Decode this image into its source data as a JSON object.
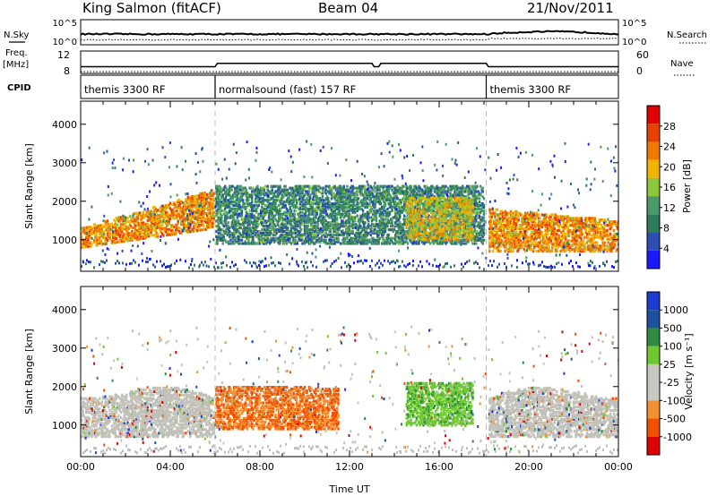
{
  "header": {
    "station": "King Salmon (fitACF)",
    "beam": "Beam 04",
    "date": "21/Nov/2011"
  },
  "side_labels": {
    "nsky": "N.Sky",
    "nsearch": "N.Search",
    "freq": "Freq.",
    "mhz": "[MHz]",
    "nave": "Nave",
    "cpid": "CPID"
  },
  "noise_panel": {
    "left_ticks": [
      "10^5",
      "10^0"
    ],
    "right_ticks": [
      "10^5",
      "10^0"
    ]
  },
  "freq_panel": {
    "left_ticks": [
      "12",
      "8"
    ],
    "right_ticks": [
      "60",
      "0"
    ]
  },
  "cpid_panel": {
    "segments": [
      {
        "label": "themis 3300 RF",
        "start_hour": 0.0,
        "end_hour": 6.0
      },
      {
        "label": "normalsound (fast) 157 RF",
        "start_hour": 6.0,
        "end_hour": 18.1
      },
      {
        "label": "themis 3300 RF",
        "start_hour": 18.1,
        "end_hour": 24.0
      }
    ]
  },
  "colors": {
    "scale_power": [
      "#1a1aff",
      "#2a4fb0",
      "#2e7d5a",
      "#4a9a6a",
      "#8cc63a",
      "#f0b400",
      "#f07a00",
      "#e84000",
      "#e00000"
    ],
    "scale_velocity": [
      "#e00000",
      "#f05000",
      "#f09030",
      "#c8c8c0",
      "#c8c8c0",
      "#70c830",
      "#2e8c40",
      "#2050a0",
      "#1a3ad0"
    ],
    "ground_scatter": "#c0c0b8"
  },
  "chart_data": [
    {
      "type": "heatmap",
      "title": "Power",
      "xlabel": "",
      "ylabel": "Slant Range [km]",
      "xlim": [
        0,
        24
      ],
      "ylim": [
        180,
        4600
      ],
      "y_ticks": [
        "1000",
        "2000",
        "3000",
        "4000"
      ],
      "colorbar": {
        "label": "Power [dB]",
        "ticks": [
          "4",
          "8",
          "12",
          "16",
          "20",
          "24",
          "28"
        ],
        "range": [
          0,
          32
        ]
      },
      "regions": [
        {
          "x": [
            0.0,
            5.9
          ],
          "y_low_start": 800,
          "y_low_end": 1300,
          "y_high_start": 1300,
          "y_high_end": 2300,
          "value": 22
        },
        {
          "x": [
            6.0,
            18.0
          ],
          "y_low_start": 900,
          "y_low_end": 900,
          "y_high_start": 2400,
          "y_high_end": 2400,
          "value": 10
        },
        {
          "x": [
            14.5,
            17.5
          ],
          "y_low_start": 1000,
          "y_low_end": 1000,
          "y_high_start": 2100,
          "y_high_end": 2100,
          "value": 18
        },
        {
          "x": [
            18.2,
            24.0
          ],
          "y_low_start": 700,
          "y_low_end": 700,
          "y_high_start": 1800,
          "y_high_end": 1500,
          "value": 22
        }
      ]
    },
    {
      "type": "heatmap",
      "title": "Velocity",
      "xlabel": "Time UT",
      "ylabel": "Slant Range [km]",
      "xlim": [
        0,
        24
      ],
      "ylim": [
        180,
        4600
      ],
      "y_ticks": [
        "1000",
        "2000",
        "3000",
        "4000"
      ],
      "x_ticks": [
        "00:00",
        "04:00",
        "08:00",
        "12:00",
        "16:00",
        "20:00",
        "00:00"
      ],
      "colorbar": {
        "label": "Velocity [m s⁻¹]",
        "ticks": [
          "1000",
          "500",
          "100",
          "25",
          "-25",
          "-100",
          "-500",
          "-1000"
        ]
      },
      "regions": [
        {
          "x": [
            0.0,
            5.9
          ],
          "kind": "ground"
        },
        {
          "x": [
            6.0,
            11.5
          ],
          "kind": "negative"
        },
        {
          "x": [
            14.5,
            17.5
          ],
          "kind": "positive"
        },
        {
          "x": [
            18.2,
            24.0
          ],
          "kind": "ground"
        }
      ]
    }
  ]
}
